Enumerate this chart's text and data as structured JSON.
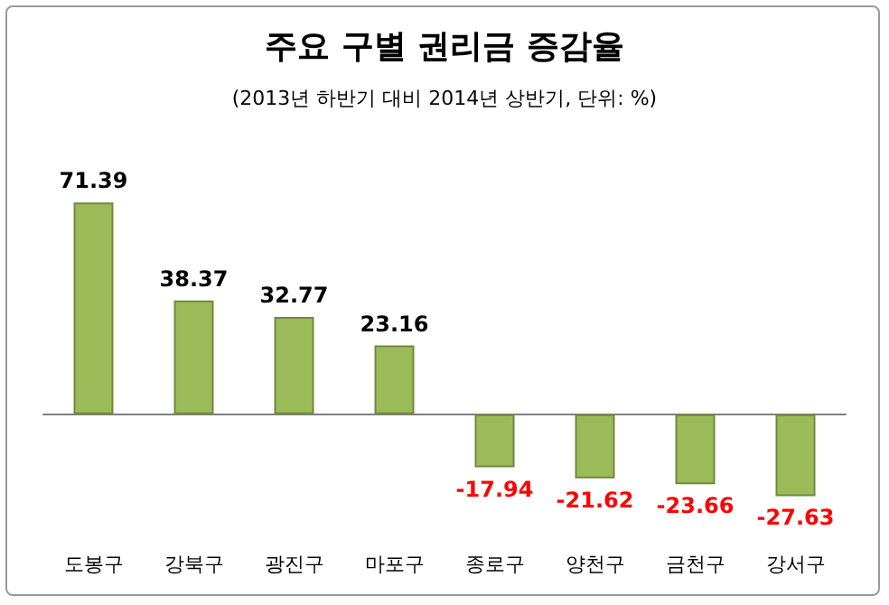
{
  "chart_data": {
    "type": "bar",
    "title": "주요 구별 권리금 증감율",
    "subtitle": "(2013년 하반기 대비 2014년 상반기, 단위: %)",
    "categories": [
      "도봉구",
      "강북구",
      "광진구",
      "마포구",
      "종로구",
      "양천구",
      "금천구",
      "강서구"
    ],
    "values": [
      71.39,
      38.37,
      32.77,
      23.16,
      -17.94,
      -21.62,
      -23.66,
      -27.63
    ],
    "color": "#9bbb59",
    "data_labels": true
  }
}
